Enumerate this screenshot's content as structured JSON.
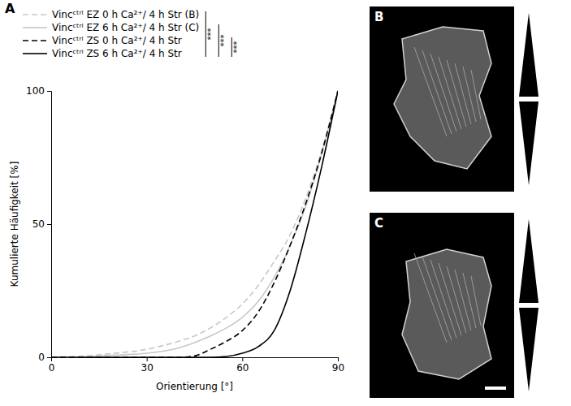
{
  "chart_data": {
    "type": "line",
    "panel_letter": "A",
    "x_label": "Orientierung [°]",
    "y_label": "Kumulierte Häufigkeit [%]",
    "x": [
      0,
      10,
      20,
      30,
      40,
      45,
      50,
      55,
      60,
      65,
      70,
      75,
      80,
      85,
      90
    ],
    "xlim": [
      0,
      90
    ],
    "xticks": [
      0,
      30,
      60,
      90
    ],
    "ylim": [
      0,
      100
    ],
    "yticks": [
      0,
      50,
      100
    ],
    "grid": false,
    "legend": "top",
    "series": [
      {
        "name": "Vincᶜᵗʳˡ EZ 0 h Ca²⁺/ 4 h Str (B)",
        "color": "#c8c8c8",
        "line_style": "dashed",
        "values": [
          0,
          0.5,
          1.5,
          3,
          6,
          8,
          11,
          15,
          20,
          27,
          36,
          46,
          60,
          78,
          100
        ]
      },
      {
        "name": "Vincᶜᵗʳˡ EZ 6 h Ca²⁺/ 4 h Str (C)",
        "color": "#c8c8c8",
        "line_style": "solid",
        "values": [
          0,
          0.2,
          0.8,
          1.5,
          3.5,
          5.5,
          8,
          11,
          15,
          21,
          30,
          42,
          57,
          77,
          100
        ]
      },
      {
        "name": "Vincᶜᵗʳˡ ZS 0 h Ca²⁺/ 4 h Str",
        "color": "#000000",
        "line_style": "dashed",
        "values": [
          0,
          0,
          0,
          0,
          0,
          0.5,
          3,
          6,
          10,
          17,
          28,
          42,
          58,
          77,
          100
        ]
      },
      {
        "name": "Vincᶜᵗʳˡ ZS 6 h Ca²⁺/ 4 h Str",
        "color": "#000000",
        "line_style": "solid",
        "values": [
          0,
          0,
          0,
          0,
          0,
          0,
          0,
          0.3,
          1.5,
          4,
          10,
          25,
          47,
          72,
          100
        ]
      }
    ],
    "annotations": [
      "***",
      "***",
      "***"
    ]
  },
  "images": [
    {
      "label": "B"
    },
    {
      "label": "C"
    }
  ]
}
